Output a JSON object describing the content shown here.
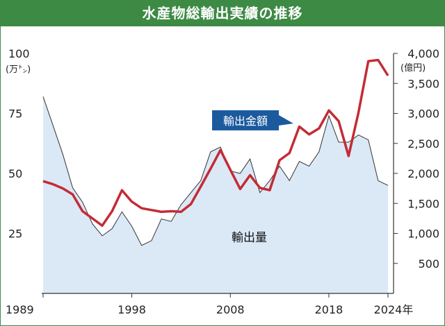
{
  "title": "水産物総輸出実績の推移",
  "chart_data": {
    "type": "area+line",
    "x_range": [
      1989,
      2024
    ],
    "x_ticks": [
      "1989",
      "1998",
      "2008",
      "2018",
      "2024年"
    ],
    "left_axis": {
      "unit": "(万㌧)",
      "ticks": [
        "100",
        "75",
        "50",
        "25"
      ],
      "range": [
        0,
        100
      ]
    },
    "right_axis": {
      "unit": "(億円)",
      "ticks": [
        "4,000",
        "3,500",
        "3,000",
        "2,500",
        "2,000",
        "1,500",
        "1,000",
        "500"
      ],
      "range": [
        0,
        4000
      ]
    },
    "series": [
      {
        "name": "輸出量",
        "type": "area",
        "axis": "left",
        "color": "#dbe9f7",
        "points": [
          [
            1989,
            82
          ],
          [
            1990,
            70
          ],
          [
            1991,
            58
          ],
          [
            1992,
            44
          ],
          [
            1993,
            38
          ],
          [
            1994,
            29
          ],
          [
            1995,
            24
          ],
          [
            1996,
            27
          ],
          [
            1997,
            34
          ],
          [
            1998,
            28
          ],
          [
            1999,
            20
          ],
          [
            2000,
            22
          ],
          [
            2001,
            31
          ],
          [
            2002,
            30
          ],
          [
            2003,
            37
          ],
          [
            2004,
            42
          ],
          [
            2005,
            47
          ],
          [
            2006,
            59
          ],
          [
            2007,
            61
          ],
          [
            2008,
            51
          ],
          [
            2009,
            50
          ],
          [
            2010,
            56
          ],
          [
            2011,
            42
          ],
          [
            2012,
            47
          ],
          [
            2013,
            53
          ],
          [
            2014,
            47
          ],
          [
            2015,
            55
          ],
          [
            2016,
            53
          ],
          [
            2017,
            59
          ],
          [
            2018,
            74
          ],
          [
            2019,
            63
          ],
          [
            2020,
            63
          ],
          [
            2021,
            66
          ],
          [
            2022,
            64
          ],
          [
            2023,
            47
          ],
          [
            2024,
            45
          ]
        ]
      },
      {
        "name": "輸出金額",
        "type": "line",
        "axis": "right",
        "color": "#c42b35",
        "points": [
          [
            1989,
            1870
          ],
          [
            1990,
            1820
          ],
          [
            1991,
            1750
          ],
          [
            1992,
            1650
          ],
          [
            1993,
            1370
          ],
          [
            1994,
            1250
          ],
          [
            1995,
            1130
          ],
          [
            1996,
            1370
          ],
          [
            1997,
            1720
          ],
          [
            1998,
            1530
          ],
          [
            1999,
            1420
          ],
          [
            2000,
            1390
          ],
          [
            2001,
            1360
          ],
          [
            2002,
            1370
          ],
          [
            2003,
            1360
          ],
          [
            2004,
            1490
          ],
          [
            2005,
            1780
          ],
          [
            2006,
            2080
          ],
          [
            2007,
            2390
          ],
          [
            2008,
            2060
          ],
          [
            2009,
            1740
          ],
          [
            2010,
            1970
          ],
          [
            2011,
            1760
          ],
          [
            2012,
            1720
          ],
          [
            2013,
            2220
          ],
          [
            2014,
            2340
          ],
          [
            2015,
            2780
          ],
          [
            2016,
            2650
          ],
          [
            2017,
            2750
          ],
          [
            2018,
            3050
          ],
          [
            2019,
            2870
          ],
          [
            2020,
            2290
          ],
          [
            2021,
            3010
          ],
          [
            2022,
            3870
          ],
          [
            2023,
            3890
          ],
          [
            2024,
            3630
          ]
        ]
      }
    ],
    "annotations": {
      "area_label": "輸出量",
      "line_label": "輸出金額"
    }
  }
}
